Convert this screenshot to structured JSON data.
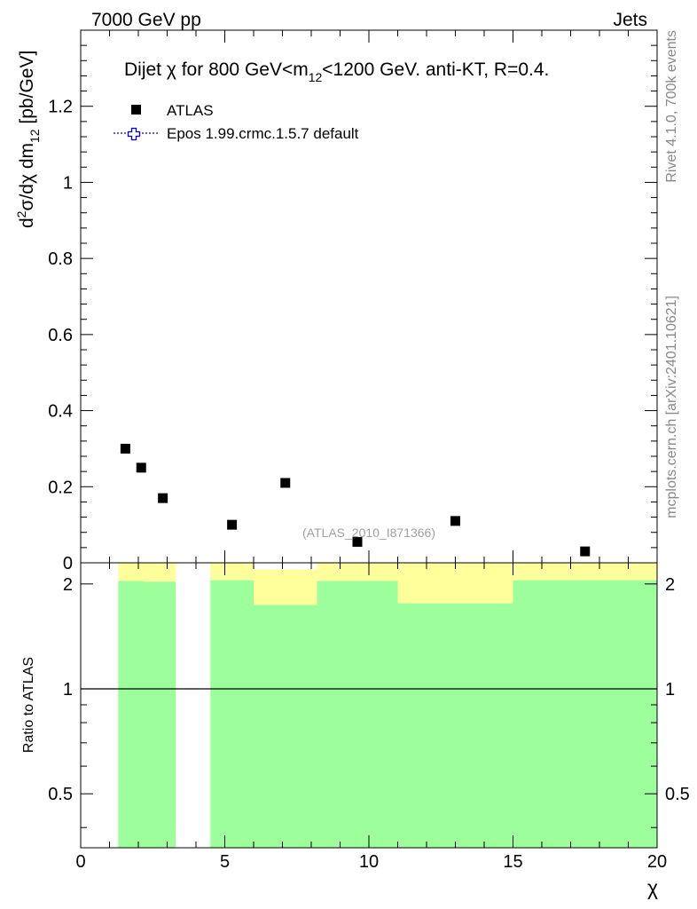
{
  "header": {
    "left": "7000 GeV pp",
    "right": "Jets"
  },
  "side": {
    "rivet": "Rivet 4.1.0,  700k events",
    "mcplots": "mcplots.cern.ch [arXiv:2401.10621]"
  },
  "chart_data": {
    "type": "scatter",
    "title": "Dijet χ for 800 GeV<m₁₂<1200 GeV.  anti-KT, R=0.4.",
    "title_parts": {
      "a": "Dijet ",
      "chi": "χ",
      "b": " for 800 GeV<m",
      "sub": "12",
      "c": "<1200 GeV.  anti-KT, R=0.4."
    },
    "ylabel_parts": {
      "d": "d",
      "sup": "2",
      "b": "σ/dχ dm",
      "sub": "12",
      "c": " [pb/GeV]"
    },
    "xlabel": "χ",
    "watermark": "(ATLAS_2010_I871366)",
    "xlim": [
      0,
      20
    ],
    "main": {
      "ylim": [
        0,
        1.4
      ],
      "yticks": [
        0,
        0.2,
        0.4,
        0.6,
        0.8,
        1,
        1.2
      ],
      "ytick_labels": [
        "0",
        "0.2",
        "0.4",
        "0.6",
        "0.8",
        "1",
        "1.2"
      ]
    },
    "xticks": [
      0,
      5,
      10,
      15,
      20
    ],
    "xtick_labels": [
      "0",
      "5",
      "10",
      "15",
      "20"
    ],
    "legend": [
      {
        "name": "ATLAS",
        "marker": "square",
        "color": "#000000"
      },
      {
        "name": "Epos 1.99.crmc.1.5.7 default",
        "marker": "open-cross",
        "color": "#0000cc"
      }
    ],
    "series": [
      {
        "name": "ATLAS",
        "points": [
          {
            "x": 1.55,
            "y": 0.3
          },
          {
            "x": 2.1,
            "y": 0.25
          },
          {
            "x": 2.85,
            "y": 0.17
          },
          {
            "x": 5.25,
            "y": 0.1
          },
          {
            "x": 7.1,
            "y": 0.21
          },
          {
            "x": 9.6,
            "y": 0.055
          },
          {
            "x": 13.0,
            "y": 0.11
          },
          {
            "x": 17.5,
            "y": 0.03
          }
        ]
      }
    ],
    "ratio": {
      "ylabel": "Ratio to ATLAS",
      "ylim": [
        0.35,
        2.3
      ],
      "yticks": [
        0.5,
        1,
        2
      ],
      "ytick_labels": [
        "0.5",
        "1",
        "2"
      ],
      "bands": [
        {
          "x0": 1.3,
          "x1": 2.2,
          "green_hi": 2.04,
          "yellow_hi": 2.3
        },
        {
          "x0": 2.2,
          "x1": 3.3,
          "green_hi": 2.03,
          "yellow_hi": 2.3
        },
        {
          "x0": 4.5,
          "x1": 6.0,
          "green_hi": 2.05,
          "yellow_hi": 2.3
        },
        {
          "x0": 6.0,
          "x1": 8.2,
          "green_hi": 1.74,
          "yellow_hi": 2.2
        },
        {
          "x0": 8.2,
          "x1": 11.0,
          "green_hi": 2.04,
          "yellow_hi": 2.3
        },
        {
          "x0": 11.0,
          "x1": 15.0,
          "green_hi": 1.76,
          "yellow_hi": 2.3
        },
        {
          "x0": 15.0,
          "x1": 20.0,
          "green_hi": 2.05,
          "yellow_hi": 2.3
        }
      ],
      "colors": {
        "green": "#9cff9c",
        "yellow": "#ffff9c"
      }
    }
  }
}
